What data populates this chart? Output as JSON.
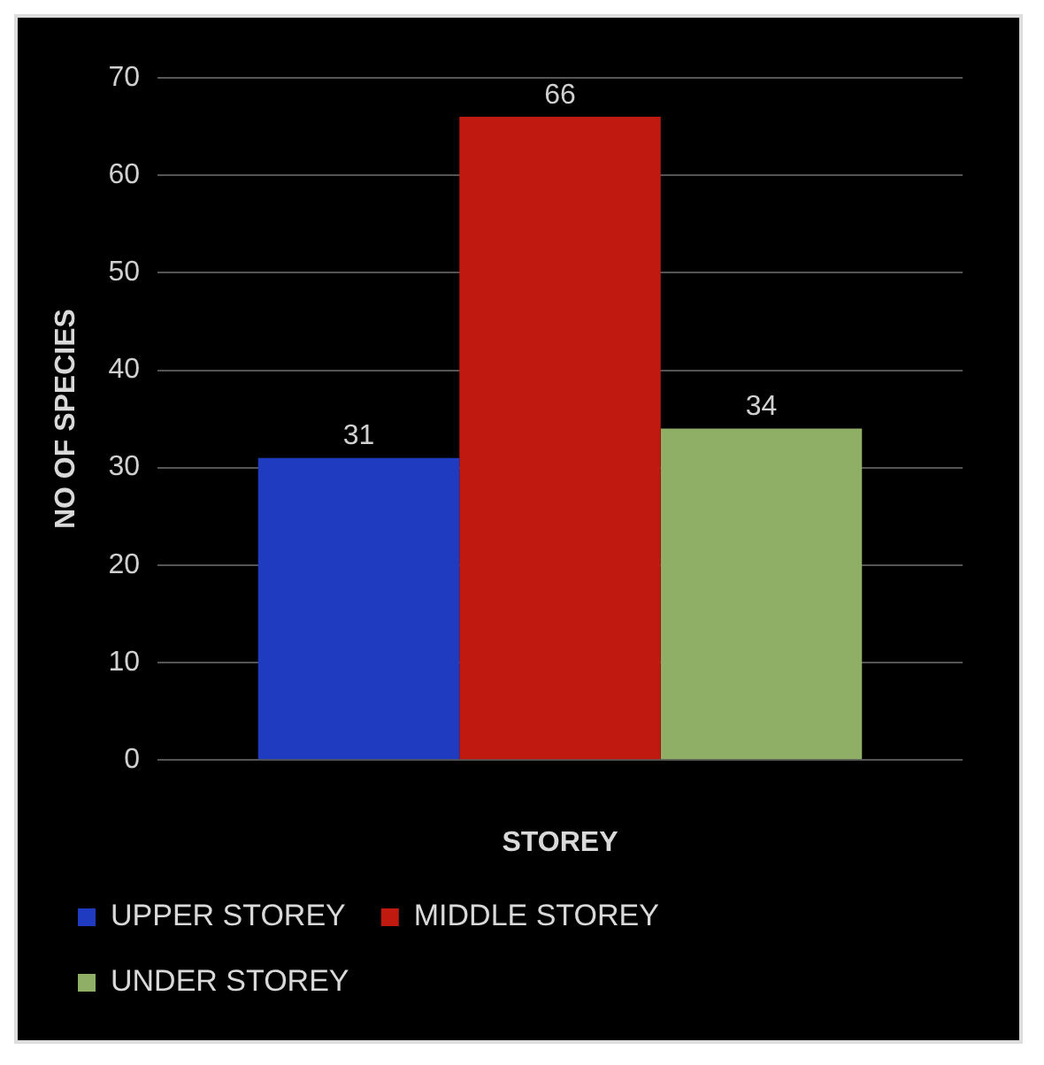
{
  "chart_data": {
    "type": "bar",
    "xlabel": "STOREY",
    "ylabel": "NO OF SPECIES",
    "categories": [
      null
    ],
    "series": [
      {
        "name": "UPPER STOREY",
        "color": "#1f3cc0",
        "values": [
          31
        ]
      },
      {
        "name": "MIDDLE STOREY",
        "color": "#c01a10",
        "values": [
          66
        ]
      },
      {
        "name": "UNDER STOREY",
        "color": "#8fae66",
        "values": [
          34
        ]
      }
    ],
    "ylim": [
      0,
      70
    ],
    "yticks": [
      0,
      10,
      20,
      30,
      40,
      50,
      60,
      70
    ],
    "grid": "y",
    "legend": "bottom",
    "data_labels": true
  }
}
